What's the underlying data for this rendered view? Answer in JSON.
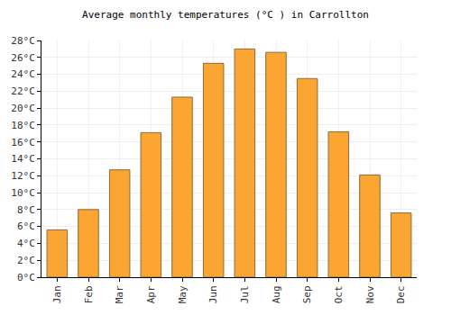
{
  "chart_data": {
    "type": "bar",
    "title": "Average monthly temperatures (°C ) in Carrollton",
    "categories": [
      "Jan",
      "Feb",
      "Mar",
      "Apr",
      "May",
      "Jun",
      "Jul",
      "Aug",
      "Sep",
      "Oct",
      "Nov",
      "Dec"
    ],
    "values": [
      5.6,
      8.0,
      12.7,
      17.1,
      21.3,
      25.3,
      27.0,
      26.6,
      23.5,
      17.2,
      12.1,
      7.6
    ],
    "color": "#fba533",
    "ylim": [
      0,
      28
    ],
    "yticks": [
      {
        "value": 0,
        "label": "0°C"
      },
      {
        "value": 2,
        "label": "2°C"
      },
      {
        "value": 4,
        "label": "4°C"
      },
      {
        "value": 6,
        "label": "6°C"
      },
      {
        "value": 8,
        "label": "8°C"
      },
      {
        "value": 10,
        "label": "10°C"
      },
      {
        "value": 12,
        "label": "12°C"
      },
      {
        "value": 14,
        "label": "14°C"
      },
      {
        "value": 16,
        "label": "16°C"
      },
      {
        "value": 18,
        "label": "18°C"
      },
      {
        "value": 20,
        "label": "20°C"
      },
      {
        "value": 22,
        "label": "22°C"
      },
      {
        "value": 24,
        "label": "24°C"
      },
      {
        "value": 26,
        "label": "26°C"
      },
      {
        "value": 28,
        "label": "28°C"
      }
    ],
    "grid": true
  }
}
